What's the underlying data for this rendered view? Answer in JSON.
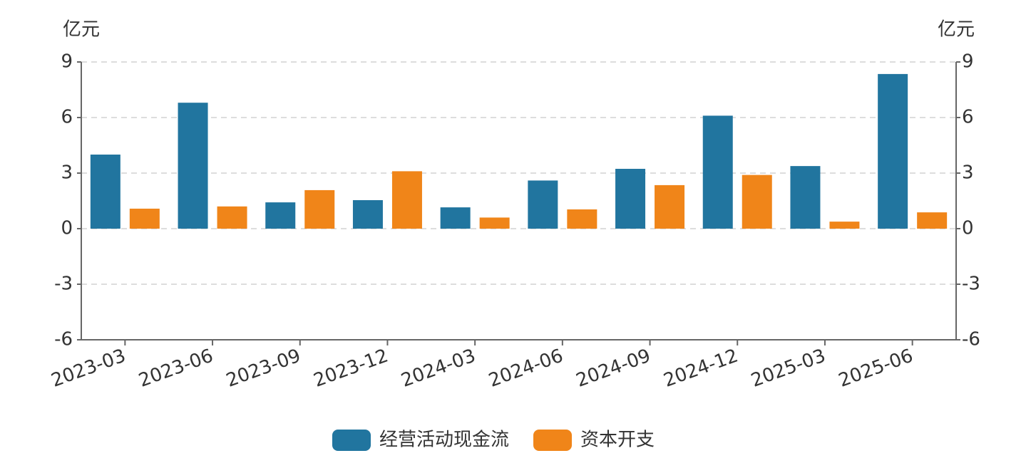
{
  "chart_data": {
    "type": "bar",
    "y_unit": "亿元",
    "y2_unit": "亿元",
    "categories": [
      "2023-03",
      "2023-06",
      "2023-09",
      "2023-12",
      "2024-03",
      "2024-06",
      "2024-09",
      "2024-12",
      "2025-03",
      "2025-06"
    ],
    "series": [
      {
        "name": "经营活动现金流",
        "color": "#21759f",
        "values": [
          4.0,
          6.8,
          1.42,
          1.54,
          1.15,
          2.6,
          3.23,
          6.1,
          3.38,
          8.35
        ]
      },
      {
        "name": "资本开支",
        "color": "#f08519",
        "axis": "y2",
        "values": [
          1.08,
          1.2,
          2.08,
          3.1,
          0.6,
          1.04,
          2.35,
          2.9,
          0.38,
          0.88
        ]
      }
    ],
    "ylim": [
      -6,
      9
    ],
    "yticks": [
      -6,
      -3,
      0,
      3,
      6,
      9
    ],
    "y2lim": [
      -6,
      9
    ],
    "y2ticks": [
      -6,
      -3,
      0,
      3,
      6,
      9
    ],
    "grid": true,
    "legend": "bottom"
  }
}
